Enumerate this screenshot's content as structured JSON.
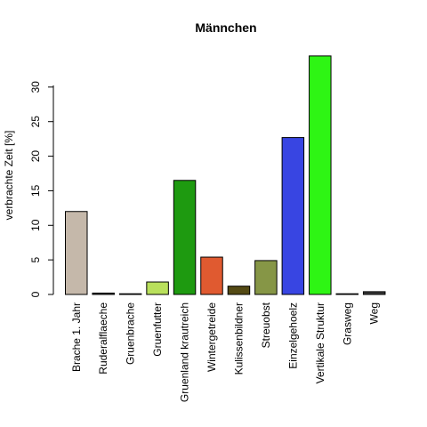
{
  "chart_data": {
    "type": "bar",
    "title": "Männchen",
    "xlabel": "",
    "ylabel": "verbrachte Zeit [%]",
    "ylim": [
      0,
      35
    ],
    "yticks": [
      0,
      5,
      10,
      15,
      20,
      25,
      30
    ],
    "yticks_text": [
      "0",
      "5",
      "10",
      "15",
      "20",
      "25",
      "30"
    ],
    "grid": false,
    "categories": [
      "Brache 1. Jahr",
      "Ruderalflaeche",
      "Gruenbrache",
      "Gruenfutter",
      "Gruenland krautreich",
      "Wintergetreide",
      "Kulissenbildner",
      "Streuobst",
      "Einzelgehoelz",
      "Vertikale Struktur",
      "Grasweg",
      "Weg"
    ],
    "values": [
      12.0,
      0.2,
      0.1,
      1.8,
      16.5,
      5.4,
      1.2,
      4.9,
      22.7,
      34.5,
      0.1,
      0.4
    ],
    "colors": [
      "#c5b8aa",
      "#3a3a3a",
      "#3a3a3a",
      "#b9e05c",
      "#1e9a10",
      "#e05a30",
      "#544a14",
      "#869646",
      "#3845e2",
      "#2ef514",
      "#3a3a3a",
      "#3a3a3a"
    ]
  }
}
